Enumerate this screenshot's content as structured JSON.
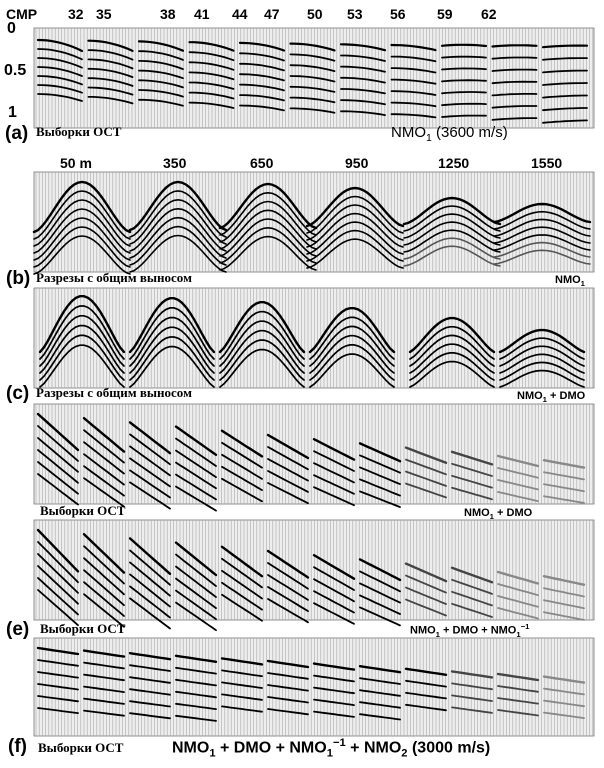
{
  "panel_a": {
    "letter": "(a)",
    "xlabel_prefix": "CMP",
    "ticks": [
      "32",
      "35",
      "38",
      "41",
      "44",
      "47",
      "50",
      "53",
      "56",
      "59",
      "62"
    ],
    "yticks": [
      "0",
      "0.5",
      "1"
    ],
    "caption": "Выборки ОСТ",
    "right_label": "NMO",
    "right_sub": "1",
    "right_suffix": "(3600 m/s)"
  },
  "panel_b": {
    "letter": "(b)",
    "ticks": [
      "50 m",
      "350",
      "650",
      "950",
      "1250",
      "1550"
    ],
    "caption": "Разрезы с общим выносом",
    "right_label": "NMO",
    "right_sub": "1"
  },
  "panel_c": {
    "letter": "(c)",
    "caption": "Разрезы с общим выносом",
    "right_label": "NMO",
    "right_sub": "1",
    "right_suffix": "+ DMO"
  },
  "panel_d": {
    "caption": "Выборки ОСТ",
    "right_label": "NMO",
    "right_sub": "1",
    "right_suffix": "+ DMO"
  },
  "panel_e": {
    "letter": "(e)",
    "caption": "Выборки ОСТ",
    "right_label": "NMO",
    "right_sub": "1",
    "right_mid": "+ DMO + NMO",
    "right_sub2": "1",
    "right_sup2": "−1"
  },
  "panel_f": {
    "letter": "(f)",
    "caption": "Выборки ОСТ",
    "right_label": "NMO",
    "right_sub": "1",
    "right_mid": "+ DMO + NMO",
    "right_sub2": "1",
    "right_sup2": "−1",
    "right_mid2": "+ NMO",
    "right_sub3": "2",
    "right_suffix": "(3000 m/s)"
  }
}
